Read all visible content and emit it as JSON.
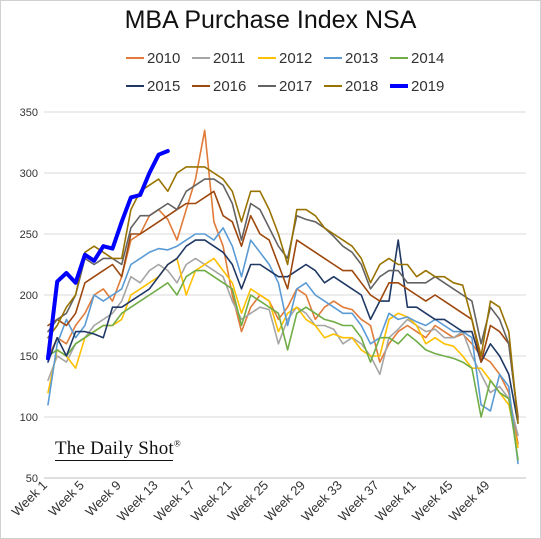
{
  "chart_data": {
    "type": "line",
    "title": "MBA Purchase Index NSA",
    "xlabel": "",
    "ylabel": "",
    "ylim": [
      50,
      350
    ],
    "yticks": [
      50,
      100,
      150,
      200,
      250,
      300,
      350
    ],
    "xticks": [
      "Week 1",
      "Week 5",
      "Week 9",
      "Week 13",
      "Week 17",
      "Week 21",
      "Week 25",
      "Week 29",
      "Week 33",
      "Week 37",
      "Week 41",
      "Week 45",
      "Week 49"
    ],
    "grid": true,
    "legend_position": "top",
    "series": [
      {
        "name": "2010",
        "color": "#E07B39",
        "width": 1.6,
        "values": [
          148,
          165,
          160,
          175,
          185,
          200,
          205,
          195,
          215,
          245,
          250,
          265,
          270,
          262,
          245,
          270,
          295,
          335,
          260,
          240,
          200,
          170,
          190,
          200,
          195,
          180,
          190,
          205,
          200,
          180,
          190,
          195,
          190,
          188,
          180,
          175,
          145,
          160,
          170,
          175,
          170,
          165,
          175,
          170,
          165,
          168,
          160,
          150,
          145,
          135,
          120,
          78
        ]
      },
      {
        "name": "2011",
        "color": "#A5A5A5",
        "width": 1.6,
        "values": [
          130,
          150,
          145,
          160,
          165,
          175,
          180,
          185,
          195,
          215,
          210,
          220,
          225,
          220,
          210,
          225,
          230,
          225,
          220,
          215,
          195,
          180,
          185,
          190,
          188,
          160,
          180,
          190,
          185,
          175,
          175,
          172,
          160,
          165,
          160,
          150,
          135,
          165,
          172,
          180,
          175,
          170,
          172,
          165,
          165,
          170,
          150,
          135,
          120,
          125,
          115,
          85
        ]
      },
      {
        "name": "2012",
        "color": "#FFC000",
        "width": 1.6,
        "values": [
          120,
          155,
          150,
          140,
          165,
          170,
          175,
          175,
          180,
          200,
          205,
          210,
          215,
          225,
          230,
          200,
          220,
          225,
          230,
          220,
          210,
          185,
          205,
          200,
          195,
          170,
          185,
          190,
          180,
          175,
          165,
          168,
          165,
          165,
          155,
          150,
          150,
          180,
          185,
          182,
          175,
          160,
          165,
          160,
          158,
          150,
          140,
          140,
          130,
          120,
          110,
          75
        ]
      },
      {
        "name": "2013",
        "color": "#5B9BD5",
        "width": 1.6,
        "values": [
          110,
          160,
          180,
          165,
          175,
          200,
          195,
          200,
          205,
          225,
          230,
          235,
          238,
          237,
          240,
          245,
          250,
          250,
          245,
          255,
          240,
          215,
          245,
          235,
          225,
          210,
          175,
          205,
          210,
          200,
          195,
          190,
          185,
          185,
          175,
          160,
          165,
          185,
          180,
          182,
          178,
          175,
          180,
          175,
          170,
          170,
          165,
          110,
          105,
          135,
          125,
          62
        ]
      },
      {
        "name": "2014",
        "color": "#70AD47",
        "width": 1.6,
        "values": [
          150,
          155,
          150,
          160,
          165,
          170,
          175,
          175,
          185,
          190,
          195,
          200,
          205,
          210,
          200,
          215,
          220,
          220,
          215,
          210,
          205,
          175,
          200,
          195,
          190,
          185,
          155,
          185,
          190,
          185,
          180,
          178,
          175,
          175,
          165,
          145,
          165,
          165,
          160,
          168,
          162,
          155,
          152,
          150,
          148,
          145,
          140,
          100,
          130,
          120,
          115,
          65
        ]
      },
      {
        "name": "2015",
        "color": "#1F3864",
        "width": 1.6,
        "values": [
          145,
          165,
          150,
          170,
          170,
          168,
          165,
          190,
          190,
          195,
          200,
          205,
          215,
          225,
          230,
          240,
          245,
          245,
          240,
          235,
          225,
          205,
          225,
          225,
          220,
          215,
          215,
          220,
          225,
          220,
          210,
          215,
          210,
          205,
          200,
          180,
          195,
          195,
          245,
          190,
          190,
          185,
          180,
          180,
          175,
          170,
          170,
          145,
          160,
          150,
          135,
          95
        ]
      },
      {
        "name": "2016",
        "color": "#9E480E",
        "width": 1.6,
        "values": [
          175,
          180,
          175,
          185,
          210,
          215,
          220,
          225,
          215,
          250,
          250,
          255,
          260,
          265,
          270,
          275,
          275,
          280,
          285,
          265,
          260,
          240,
          265,
          250,
          245,
          225,
          205,
          245,
          240,
          235,
          230,
          225,
          220,
          220,
          210,
          200,
          195,
          210,
          210,
          205,
          200,
          195,
          200,
          195,
          190,
          185,
          180,
          145,
          175,
          170,
          160,
          100
        ]
      },
      {
        "name": "2017",
        "color": "#636363",
        "width": 1.6,
        "values": [
          170,
          180,
          185,
          200,
          230,
          225,
          230,
          230,
          225,
          255,
          265,
          265,
          270,
          275,
          270,
          285,
          290,
          295,
          295,
          290,
          275,
          245,
          275,
          270,
          255,
          240,
          230,
          265,
          262,
          260,
          255,
          248,
          240,
          235,
          225,
          205,
          215,
          220,
          220,
          210,
          210,
          210,
          215,
          210,
          205,
          200,
          195,
          160,
          190,
          180,
          160,
          98
        ]
      },
      {
        "name": "2018",
        "color": "#997300",
        "width": 1.6,
        "values": [
          165,
          175,
          190,
          200,
          235,
          240,
          235,
          230,
          230,
          270,
          285,
          290,
          295,
          285,
          300,
          305,
          305,
          305,
          300,
          295,
          285,
          260,
          285,
          285,
          270,
          250,
          225,
          270,
          270,
          265,
          255,
          250,
          245,
          240,
          230,
          210,
          225,
          230,
          225,
          225,
          215,
          220,
          215,
          215,
          210,
          208,
          180,
          150,
          195,
          190,
          170,
          95
        ]
      },
      {
        "name": "2019",
        "color": "#0000FF",
        "width": 4,
        "values": [
          148,
          211,
          218,
          210,
          233,
          228,
          240,
          238,
          260,
          280,
          282,
          300,
          315,
          318
        ]
      }
    ],
    "legend_rows": [
      [
        "2010",
        "2011",
        "2012",
        "2013",
        "2014"
      ],
      [
        "2015",
        "2016",
        "2017",
        "2018",
        "2019"
      ]
    ]
  },
  "watermark": {
    "text": "The Daily Shot",
    "mark": "®"
  }
}
